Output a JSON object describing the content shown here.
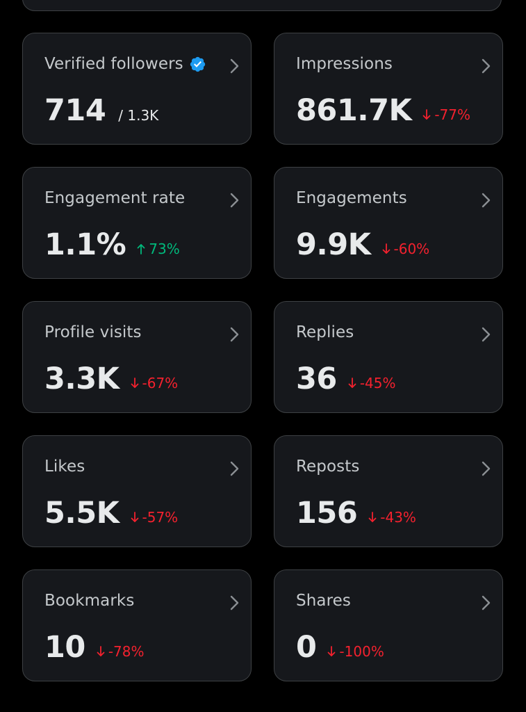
{
  "colors": {
    "background": "#000000",
    "card_bg": "#16181c",
    "card_border": "#3e4144",
    "verified_blue": "#1d9bf0",
    "negative": "#f4212e",
    "positive": "#00ba7c"
  },
  "cards": [
    {
      "label": "Verified followers",
      "value": "714",
      "subvalue": "/ 1.3K",
      "icon": "verified-badge-icon"
    },
    {
      "label": "Impressions",
      "value": "861.7K",
      "change": "-77%",
      "trend": "down"
    },
    {
      "label": "Engagement rate",
      "value": "1.1%",
      "change": "73%",
      "trend": "up"
    },
    {
      "label": "Engagements",
      "value": "9.9K",
      "change": "-60%",
      "trend": "down"
    },
    {
      "label": "Profile visits",
      "value": "3.3K",
      "change": "-67%",
      "trend": "down"
    },
    {
      "label": "Replies",
      "value": "36",
      "change": "-45%",
      "trend": "down"
    },
    {
      "label": "Likes",
      "value": "5.5K",
      "change": "-57%",
      "trend": "down"
    },
    {
      "label": "Reposts",
      "value": "156",
      "change": "-43%",
      "trend": "down"
    },
    {
      "label": "Bookmarks",
      "value": "10",
      "change": "-78%",
      "trend": "down"
    },
    {
      "label": "Shares",
      "value": "0",
      "change": "-100%",
      "trend": "down"
    }
  ]
}
